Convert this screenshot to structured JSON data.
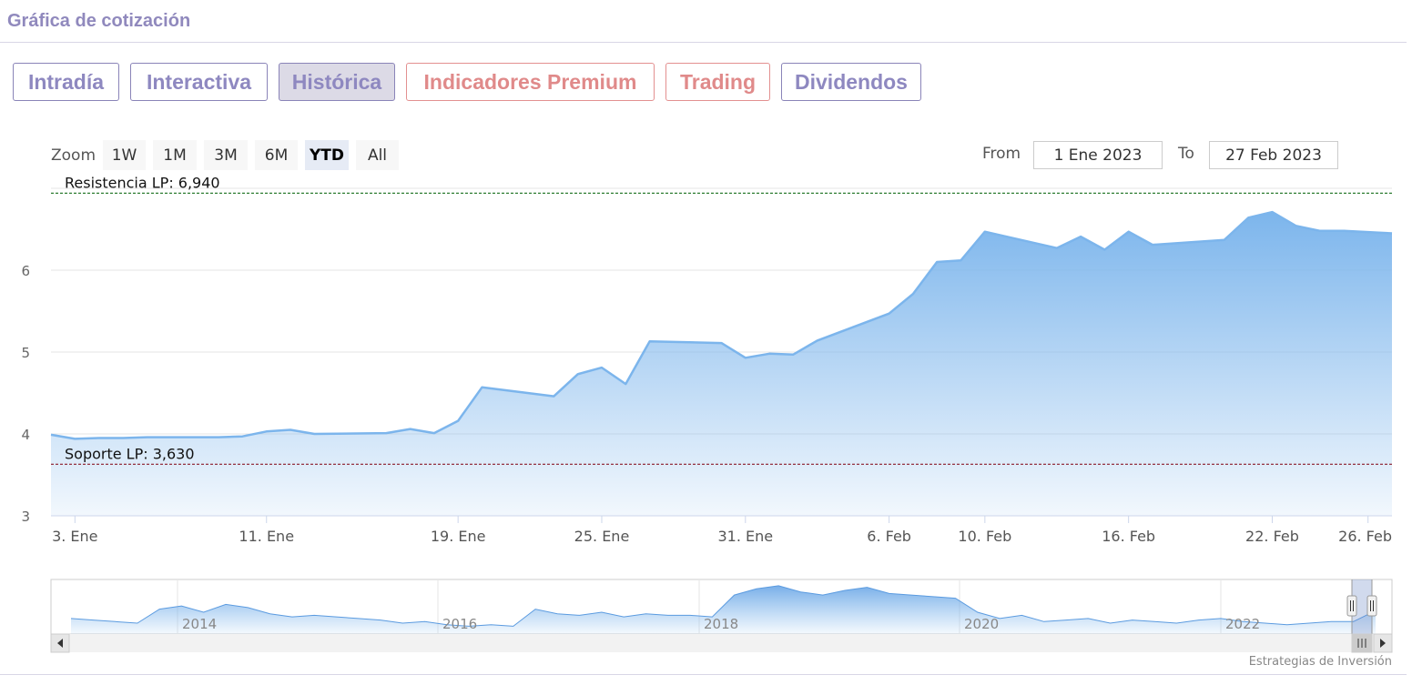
{
  "page": {
    "title": "Gráfica de cotización"
  },
  "tabs": [
    {
      "label": "Intradía",
      "kind": "normal"
    },
    {
      "label": "Interactiva",
      "kind": "normal"
    },
    {
      "label": "Histórica",
      "kind": "active"
    },
    {
      "label": "Indicadores Premium",
      "kind": "premium"
    },
    {
      "label": "Trading",
      "kind": "premium"
    },
    {
      "label": "Dividendos",
      "kind": "normal"
    }
  ],
  "zoom": {
    "label": "Zoom",
    "buttons": [
      "1W",
      "1M",
      "3M",
      "6M",
      "YTD",
      "All"
    ],
    "active": "YTD"
  },
  "range": {
    "from_label": "From",
    "from_value": "1 Ene 2023",
    "to_label": "To",
    "to_value": "27 Feb 2023"
  },
  "credit": "Estrategias de Inversión",
  "colors": {
    "line": "#7cb5ec",
    "resistance": "#2e7d32",
    "support": "#8b1a2b",
    "brand": "#9089bd",
    "premium": "#e08a8a"
  },
  "chart_data": {
    "type": "area",
    "ylim": [
      3,
      7
    ],
    "yticks": [
      3,
      4,
      5,
      6
    ],
    "xlim": [
      "2023-01-02",
      "2023-02-27"
    ],
    "xticks": [
      {
        "date": "2023-01-03",
        "label": "3. Ene"
      },
      {
        "date": "2023-01-11",
        "label": "11. Ene"
      },
      {
        "date": "2023-01-19",
        "label": "19. Ene"
      },
      {
        "date": "2023-01-25",
        "label": "25. Ene"
      },
      {
        "date": "2023-01-31",
        "label": "31. Ene"
      },
      {
        "date": "2023-02-06",
        "label": "6. Feb"
      },
      {
        "date": "2023-02-10",
        "label": "10. Feb"
      },
      {
        "date": "2023-02-16",
        "label": "16. Feb"
      },
      {
        "date": "2023-02-22",
        "label": "22. Feb"
      },
      {
        "date": "2023-02-26",
        "label": "26. Feb"
      }
    ],
    "series": [
      {
        "x": [
          "2023-01-02",
          "2023-01-03",
          "2023-01-04",
          "2023-01-05",
          "2023-01-06",
          "2023-01-09",
          "2023-01-10",
          "2023-01-11",
          "2023-01-12",
          "2023-01-13",
          "2023-01-16",
          "2023-01-17",
          "2023-01-18",
          "2023-01-19",
          "2023-01-20",
          "2023-01-23",
          "2023-01-24",
          "2023-01-25",
          "2023-01-26",
          "2023-01-27",
          "2023-01-30",
          "2023-01-31",
          "2023-02-01",
          "2023-02-02",
          "2023-02-03",
          "2023-02-06",
          "2023-02-07",
          "2023-02-08",
          "2023-02-09",
          "2023-02-10",
          "2023-02-13",
          "2023-02-14",
          "2023-02-15",
          "2023-02-16",
          "2023-02-17",
          "2023-02-20",
          "2023-02-21",
          "2023-02-22",
          "2023-02-23",
          "2023-02-24",
          "2023-02-25",
          "2023-02-27"
        ],
        "y": [
          3.99,
          3.94,
          3.95,
          3.95,
          3.96,
          3.96,
          3.97,
          4.03,
          4.05,
          4.0,
          4.01,
          4.06,
          4.01,
          4.16,
          4.57,
          4.46,
          4.73,
          4.81,
          4.61,
          5.13,
          5.11,
          4.93,
          4.98,
          4.97,
          5.14,
          5.47,
          5.71,
          6.1,
          6.12,
          6.47,
          6.27,
          6.41,
          6.25,
          6.47,
          6.31,
          6.37,
          6.64,
          6.71,
          6.54,
          6.48,
          6.48,
          6.45
        ]
      }
    ],
    "lines": [
      {
        "label": "Resistencia LP: 6,940",
        "value": 6.94
      },
      {
        "label": "Soporte LP: 3,630",
        "value": 3.63
      }
    ],
    "navigator": {
      "labels": [
        "2014",
        "2016",
        "2018",
        "2020",
        "2022"
      ],
      "values": [
        4.3,
        4.2,
        4.1,
        4.0,
        4.9,
        5.1,
        4.7,
        5.2,
        5.0,
        4.6,
        4.4,
        4.5,
        4.4,
        4.3,
        4.2,
        4.0,
        4.1,
        3.9,
        3.8,
        3.9,
        3.8,
        4.9,
        4.6,
        4.5,
        4.7,
        4.4,
        4.6,
        4.5,
        4.5,
        4.4,
        5.8,
        6.2,
        6.4,
        6.0,
        5.8,
        6.1,
        6.3,
        5.9,
        5.8,
        5.7,
        5.6,
        4.7,
        4.3,
        4.5,
        4.1,
        4.2,
        4.3,
        4.0,
        4.2,
        4.1,
        4.0,
        4.2,
        4.3,
        4.1,
        4.0,
        3.9,
        4.0,
        4.1,
        4.1,
        4.8
      ]
    }
  }
}
